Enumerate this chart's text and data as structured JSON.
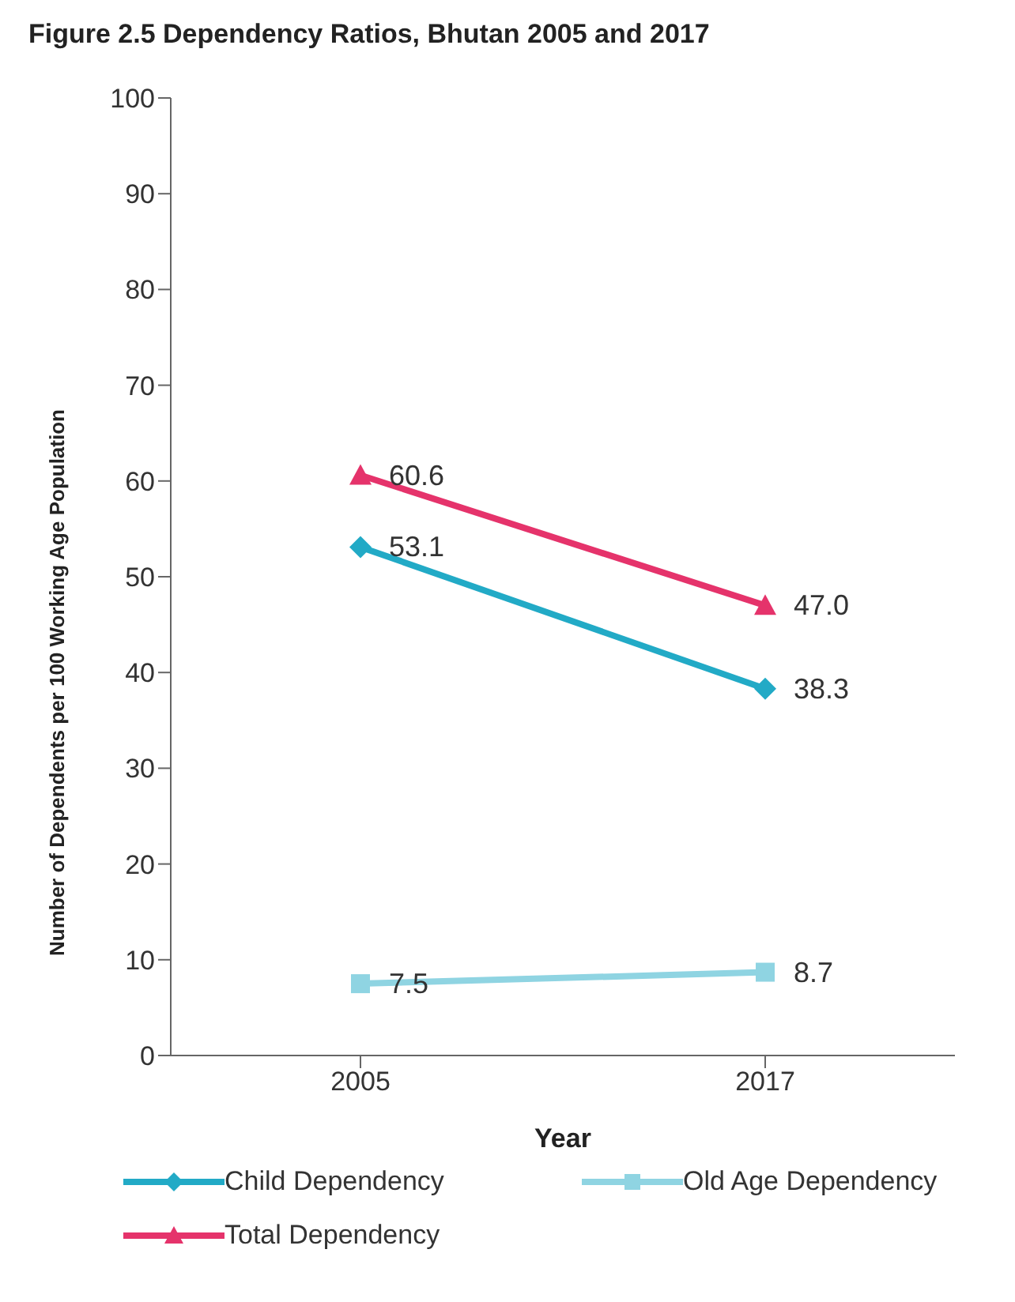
{
  "chart_data": {
    "type": "line",
    "title": "Figure 2.5 Dependency Ratios, Bhutan 2005 and 2017",
    "xlabel": "Year",
    "ylabel": "Number of Dependents per 100 Working Age Population",
    "categories": [
      "2005",
      "2017"
    ],
    "series": [
      {
        "name": "Child Dependency",
        "color": "#22aac6",
        "values": [
          53.1,
          38.3
        ],
        "marker": "diamond",
        "value_labels": [
          "53.1",
          "38.3"
        ]
      },
      {
        "name": "Old Age Dependency",
        "color": "#8fd4e2",
        "values": [
          7.5,
          8.7
        ],
        "marker": "square",
        "value_labels": [
          "7.5",
          "8.7"
        ]
      },
      {
        "name": "Total Dependency",
        "color": "#e5336b",
        "values": [
          60.6,
          47.0
        ],
        "marker": "triangle",
        "value_labels": [
          "60.6",
          "47.0"
        ]
      }
    ],
    "ylim": [
      0,
      100
    ],
    "yticks": [
      0,
      10,
      20,
      30,
      40,
      50,
      60,
      70,
      80,
      90,
      100
    ],
    "grid": false,
    "legend": "bottom",
    "line_style": "solid"
  }
}
